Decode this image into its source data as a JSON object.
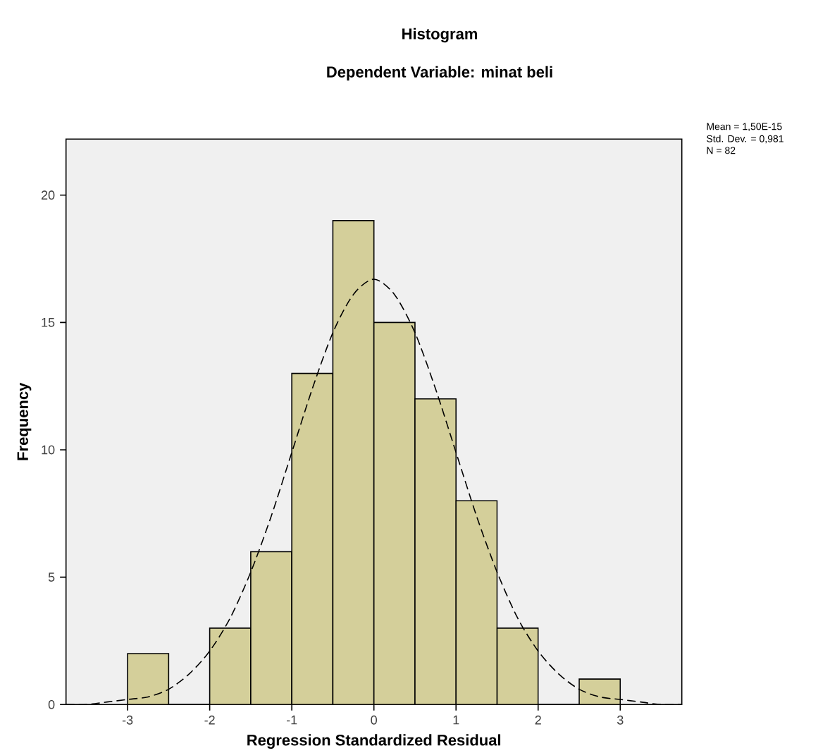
{
  "chart_data": {
    "type": "histogram",
    "title": "Histogram",
    "subtitle": "Dependent Variable: minat beli",
    "xlabel": "Regression Standardized Residual",
    "ylabel": "Frequency",
    "bins": [
      -3,
      -2.5,
      -2,
      -1.5,
      -1,
      -0.5,
      0,
      0.5,
      1,
      1.5,
      2,
      2.5,
      3
    ],
    "values": [
      2,
      0,
      3,
      6,
      13,
      19,
      15,
      12,
      8,
      3,
      0,
      1
    ],
    "color": "#d4cf9a",
    "xlim": [
      -3.75,
      3.75
    ],
    "ylim": [
      0,
      22.2
    ],
    "xticks": [
      -3,
      -2,
      -1,
      0,
      1,
      2,
      3
    ],
    "yticks": [
      0,
      5,
      10,
      15,
      20
    ],
    "series": [
      {
        "type": "line",
        "color": "#000000",
        "line_style": "dashed",
        "x": [
          -3.75,
          -3.5,
          -3.25,
          -3,
          -2.75,
          -2.5,
          -2.25,
          -2,
          -1.75,
          -1.5,
          -1.25,
          -1,
          -0.75,
          -0.5,
          -0.25,
          0,
          0.25,
          0.5,
          0.75,
          1,
          1.25,
          1.5,
          1.75,
          2,
          2.25,
          2.5,
          2.75,
          3,
          3.25,
          3.5,
          3.75
        ],
        "values": [
          0,
          0,
          0.1,
          0.2,
          0.3,
          0.6,
          1.2,
          2.1,
          3.4,
          5.2,
          7.4,
          9.9,
          12.4,
          14.6,
          16.1,
          16.7,
          16.1,
          14.6,
          12.4,
          9.9,
          7.4,
          5.2,
          3.4,
          2.1,
          1.2,
          0.6,
          0.3,
          0.2,
          0.1,
          0,
          0
        ]
      }
    ],
    "annotations": [
      "Mean = 1,50E-15",
      "Std. Dev. = 0,981",
      "N = 82"
    ]
  }
}
